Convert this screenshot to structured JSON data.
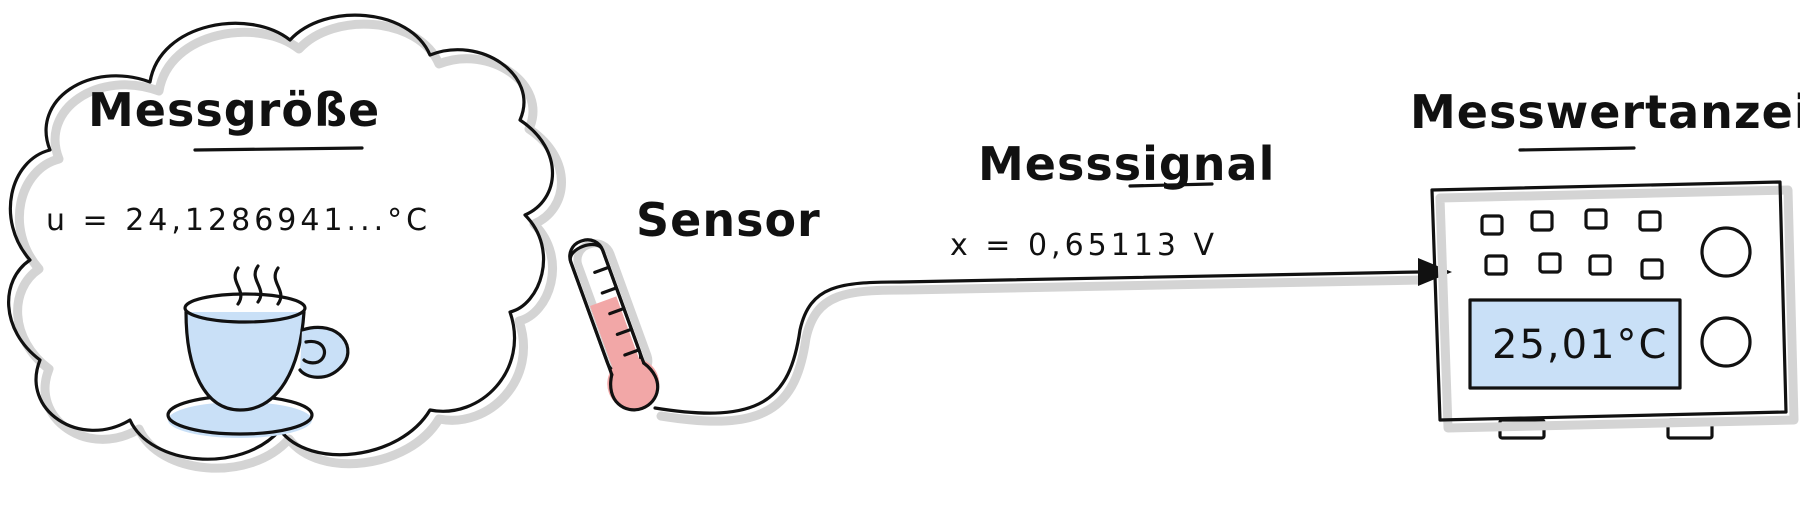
{
  "labels": {
    "quantity_title": "Messgröße",
    "quantity_formula": "u = 24,1286941...°C",
    "sensor_title": "Sensor",
    "signal_title": "Messsignal",
    "signal_formula": "x = 0,65113 V",
    "display_title": "Messwertanzeige",
    "display_value": "25,01°C"
  },
  "colors": {
    "ink": "#111111",
    "shadow": "#d4d4d4",
    "cup_fill": "#c9e0f7",
    "thermometer_fill": "#f2a7a7",
    "display_fill": "#c9e0f7"
  },
  "icons": {
    "cup": "steaming-cup-icon",
    "sensor": "thermometer-icon",
    "device": "measuring-device-icon"
  }
}
